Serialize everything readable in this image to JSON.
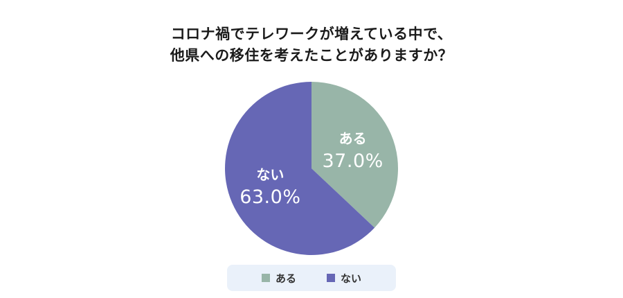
{
  "chart_data": {
    "type": "pie",
    "title_lines": [
      "コロナ禍でテレワークが増えている中で、",
      "他県への移住を考えたことがありますか？"
    ],
    "slices": [
      {
        "label": "ある",
        "value": 37.0,
        "value_label": "37.0%",
        "color": "#98b5a8"
      },
      {
        "label": "ない",
        "value": 63.0,
        "value_label": "63.0%",
        "color": "#6667b5"
      }
    ],
    "start_angle": "top",
    "direction": "clockwise",
    "legend": {
      "placement": "bottom-center",
      "items": [
        {
          "label": "ある",
          "color": "#98b5a8"
        },
        {
          "label": "ない",
          "color": "#6667b5"
        }
      ]
    }
  }
}
